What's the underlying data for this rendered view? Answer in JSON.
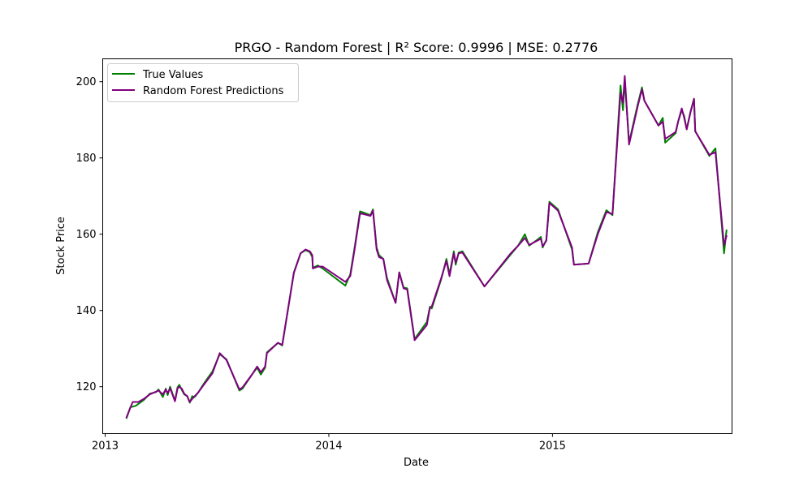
{
  "chart_data": {
    "type": "line",
    "title": "PRGO - Random Forest | R² Score: 0.9996 | MSE: 0.2776",
    "xlabel": "Date",
    "ylabel": "Stock Price",
    "x_ticks": [
      "2013",
      "2014",
      "2015"
    ],
    "y_ticks": [
      120,
      140,
      160,
      180,
      200
    ],
    "xlim": [
      "2012-12-28",
      "2015-10-21"
    ],
    "ylim": [
      107.7,
      206.0
    ],
    "grid": false,
    "legend_position": "top-left",
    "series": [
      {
        "name": "True Values",
        "color": "#008000",
        "points": [
          [
            "2013-02-05",
            111.8
          ],
          [
            "2013-02-11",
            114.6
          ],
          [
            "2013-02-20",
            115.0
          ],
          [
            "2013-03-05",
            116.5
          ],
          [
            "2013-03-15",
            118.2
          ],
          [
            "2013-03-25",
            118.6
          ],
          [
            "2013-03-29",
            119.3
          ],
          [
            "2013-04-05",
            117.3
          ],
          [
            "2013-04-10",
            119.5
          ],
          [
            "2013-04-13",
            117.8
          ],
          [
            "2013-04-17",
            120.0
          ],
          [
            "2013-04-25",
            116.3
          ],
          [
            "2013-04-29",
            119.8
          ],
          [
            "2013-05-02",
            120.5
          ],
          [
            "2013-05-06",
            119.2
          ],
          [
            "2013-05-10",
            118.0
          ],
          [
            "2013-05-15",
            117.5
          ],
          [
            "2013-05-19",
            115.8
          ],
          [
            "2013-05-23",
            117.5
          ],
          [
            "2013-05-27",
            117.3
          ],
          [
            "2013-06-02",
            118.5
          ],
          [
            "2013-06-11",
            120.8
          ],
          [
            "2013-06-25",
            124.0
          ],
          [
            "2013-07-07",
            128.5
          ],
          [
            "2013-07-18",
            127.2
          ],
          [
            "2013-08-08",
            119.0
          ],
          [
            "2013-08-13",
            119.5
          ],
          [
            "2013-08-30",
            123.5
          ],
          [
            "2013-09-06",
            125.0
          ],
          [
            "2013-09-12",
            123.2
          ],
          [
            "2013-09-19",
            125.0
          ],
          [
            "2013-09-22",
            129.0
          ],
          [
            "2013-10-10",
            131.5
          ],
          [
            "2013-10-17",
            130.8
          ],
          [
            "2013-11-05",
            150.0
          ],
          [
            "2013-11-16",
            155.0
          ],
          [
            "2013-11-24",
            155.8
          ],
          [
            "2013-12-01",
            155.3
          ],
          [
            "2013-12-05",
            154.0
          ],
          [
            "2013-12-06",
            151.2
          ],
          [
            "2013-12-14",
            151.8
          ],
          [
            "2013-12-22",
            151.0
          ],
          [
            "2014-01-28",
            146.5
          ],
          [
            "2014-02-05",
            149.5
          ],
          [
            "2014-02-12",
            156.5
          ],
          [
            "2014-02-21",
            166.0
          ],
          [
            "2014-03-10",
            165.0
          ],
          [
            "2014-03-14",
            166.5
          ],
          [
            "2014-03-20",
            156.5
          ],
          [
            "2014-03-24",
            154.5
          ],
          [
            "2014-03-31",
            153.5
          ],
          [
            "2014-04-06",
            148.5
          ],
          [
            "2014-04-20",
            142.0
          ],
          [
            "2014-04-26",
            150.0
          ],
          [
            "2014-05-03",
            146.0
          ],
          [
            "2014-05-09",
            145.8
          ],
          [
            "2014-05-21",
            132.5
          ],
          [
            "2014-06-10",
            137.0
          ],
          [
            "2014-06-15",
            141.0
          ],
          [
            "2014-06-18",
            140.5
          ],
          [
            "2014-07-03",
            148.0
          ],
          [
            "2014-07-12",
            153.5
          ],
          [
            "2014-07-17",
            149.5
          ],
          [
            "2014-07-24",
            155.5
          ],
          [
            "2014-07-27",
            152.0
          ],
          [
            "2014-08-01",
            155.2
          ],
          [
            "2014-08-07",
            155.5
          ],
          [
            "2014-09-12",
            146.3
          ],
          [
            "2014-10-24",
            154.5
          ],
          [
            "2014-11-06",
            157.0
          ],
          [
            "2014-11-17",
            160.0
          ],
          [
            "2014-11-24",
            157.0
          ],
          [
            "2014-12-07",
            158.5
          ],
          [
            "2014-12-13",
            159.3
          ],
          [
            "2014-12-16",
            156.5
          ],
          [
            "2014-12-22",
            158.5
          ],
          [
            "2014-12-27",
            168.5
          ],
          [
            "2015-01-10",
            166.5
          ],
          [
            "2015-02-02",
            156.0
          ],
          [
            "2015-02-05",
            152.0
          ],
          [
            "2015-03-01",
            152.3
          ],
          [
            "2015-03-16",
            160.5
          ],
          [
            "2015-03-30",
            166.3
          ],
          [
            "2015-04-09",
            165.0
          ],
          [
            "2015-04-22",
            199.0
          ],
          [
            "2015-04-26",
            192.5
          ],
          [
            "2015-04-29",
            200.5
          ],
          [
            "2015-05-06",
            184.0
          ],
          [
            "2015-05-20",
            194.0
          ],
          [
            "2015-05-27",
            198.5
          ],
          [
            "2015-05-31",
            195.0
          ],
          [
            "2015-06-23",
            188.5
          ],
          [
            "2015-06-30",
            190.5
          ],
          [
            "2015-07-04",
            184.0
          ],
          [
            "2015-07-21",
            186.5
          ],
          [
            "2015-07-25",
            189.5
          ],
          [
            "2015-07-31",
            192.5
          ],
          [
            "2015-08-04",
            191.0
          ],
          [
            "2015-08-08",
            187.5
          ],
          [
            "2015-08-14",
            192.0
          ],
          [
            "2015-08-20",
            195.5
          ],
          [
            "2015-08-22",
            187.0
          ],
          [
            "2015-09-14",
            180.5
          ],
          [
            "2015-09-24",
            182.5
          ],
          [
            "2015-10-08",
            155.0
          ],
          [
            "2015-10-12",
            161.0
          ]
        ]
      },
      {
        "name": "Random Forest Predictions",
        "color": "#800080",
        "points": [
          [
            "2013-02-05",
            112.0
          ],
          [
            "2013-02-11",
            114.5
          ],
          [
            "2013-02-15",
            116.0
          ],
          [
            "2013-02-24",
            116.0
          ],
          [
            "2013-03-05",
            116.8
          ],
          [
            "2013-03-15",
            118.0
          ],
          [
            "2013-03-25",
            118.7
          ],
          [
            "2013-03-29",
            119.0
          ],
          [
            "2013-04-05",
            118.0
          ],
          [
            "2013-04-10",
            119.3
          ],
          [
            "2013-04-13",
            118.3
          ],
          [
            "2013-04-17",
            119.6
          ],
          [
            "2013-04-25",
            116.2
          ],
          [
            "2013-04-29",
            119.5
          ],
          [
            "2013-05-02",
            120.0
          ],
          [
            "2013-05-06",
            119.5
          ],
          [
            "2013-05-10",
            118.2
          ],
          [
            "2013-05-15",
            117.5
          ],
          [
            "2013-05-19",
            116.0
          ],
          [
            "2013-05-23",
            116.8
          ],
          [
            "2013-05-27",
            117.5
          ],
          [
            "2013-06-02",
            118.5
          ],
          [
            "2013-06-11",
            120.5
          ],
          [
            "2013-06-25",
            123.5
          ],
          [
            "2013-07-07",
            128.8
          ],
          [
            "2013-07-18",
            127.0
          ],
          [
            "2013-08-08",
            119.3
          ],
          [
            "2013-08-13",
            119.8
          ],
          [
            "2013-08-30",
            123.5
          ],
          [
            "2013-09-06",
            125.3
          ],
          [
            "2013-09-12",
            123.8
          ],
          [
            "2013-09-19",
            125.3
          ],
          [
            "2013-09-22",
            128.8
          ],
          [
            "2013-10-10",
            131.5
          ],
          [
            "2013-10-17",
            131.0
          ],
          [
            "2013-11-05",
            149.8
          ],
          [
            "2013-11-16",
            155.0
          ],
          [
            "2013-11-24",
            156.0
          ],
          [
            "2013-12-01",
            155.5
          ],
          [
            "2013-12-05",
            154.5
          ],
          [
            "2013-12-06",
            151.0
          ],
          [
            "2013-12-14",
            151.5
          ],
          [
            "2013-12-22",
            151.5
          ],
          [
            "2014-01-28",
            147.5
          ],
          [
            "2014-02-05",
            149.0
          ],
          [
            "2014-02-12",
            156.0
          ],
          [
            "2014-02-21",
            165.5
          ],
          [
            "2014-03-10",
            164.8
          ],
          [
            "2014-03-14",
            166.2
          ],
          [
            "2014-03-20",
            156.0
          ],
          [
            "2014-03-24",
            154.0
          ],
          [
            "2014-03-31",
            153.5
          ],
          [
            "2014-04-06",
            148.0
          ],
          [
            "2014-04-20",
            142.0
          ],
          [
            "2014-04-26",
            150.0
          ],
          [
            "2014-05-03",
            145.8
          ],
          [
            "2014-05-09",
            145.5
          ],
          [
            "2014-05-21",
            132.2
          ],
          [
            "2014-06-10",
            136.2
          ],
          [
            "2014-06-15",
            140.8
          ],
          [
            "2014-06-18",
            141.0
          ],
          [
            "2014-07-03",
            148.3
          ],
          [
            "2014-07-12",
            153.0
          ],
          [
            "2014-07-17",
            149.0
          ],
          [
            "2014-07-24",
            155.0
          ],
          [
            "2014-07-27",
            152.5
          ],
          [
            "2014-08-01",
            155.0
          ],
          [
            "2014-08-07",
            155.2
          ],
          [
            "2014-09-12",
            146.3
          ],
          [
            "2014-10-24",
            154.8
          ],
          [
            "2014-11-06",
            157.0
          ],
          [
            "2014-11-17",
            159.0
          ],
          [
            "2014-11-24",
            157.2
          ],
          [
            "2014-12-07",
            158.3
          ],
          [
            "2014-12-13",
            158.8
          ],
          [
            "2014-12-16",
            156.8
          ],
          [
            "2014-12-22",
            158.3
          ],
          [
            "2014-12-27",
            168.2
          ],
          [
            "2015-01-10",
            166.2
          ],
          [
            "2015-02-02",
            156.5
          ],
          [
            "2015-02-05",
            152.0
          ],
          [
            "2015-03-01",
            152.3
          ],
          [
            "2015-03-16",
            160.0
          ],
          [
            "2015-03-30",
            165.8
          ],
          [
            "2015-04-09",
            165.3
          ],
          [
            "2015-04-22",
            197.0
          ],
          [
            "2015-04-26",
            194.5
          ],
          [
            "2015-04-29",
            201.5
          ],
          [
            "2015-05-06",
            183.5
          ],
          [
            "2015-05-20",
            193.5
          ],
          [
            "2015-05-27",
            198.0
          ],
          [
            "2015-05-31",
            195.0
          ],
          [
            "2015-06-23",
            188.5
          ],
          [
            "2015-06-30",
            189.5
          ],
          [
            "2015-07-04",
            185.0
          ],
          [
            "2015-07-21",
            186.8
          ],
          [
            "2015-07-25",
            189.5
          ],
          [
            "2015-07-31",
            193.0
          ],
          [
            "2015-08-04",
            190.5
          ],
          [
            "2015-08-08",
            187.5
          ],
          [
            "2015-08-14",
            191.8
          ],
          [
            "2015-08-20",
            195.5
          ],
          [
            "2015-08-22",
            187.0
          ],
          [
            "2015-09-14",
            180.8
          ],
          [
            "2015-09-24",
            181.5
          ],
          [
            "2015-10-08",
            157.0
          ],
          [
            "2015-10-12",
            159.5
          ]
        ]
      }
    ]
  }
}
